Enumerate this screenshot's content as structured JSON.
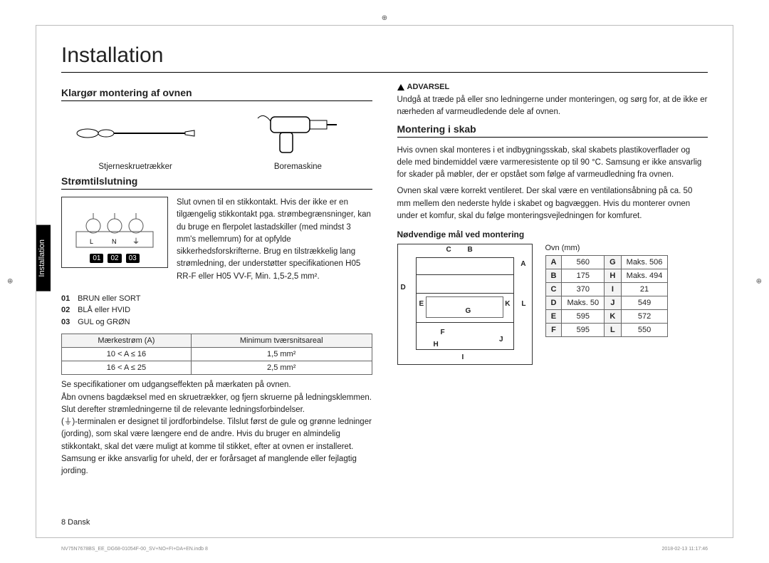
{
  "page_title": "Installation",
  "side_tab": "Installation",
  "section_prepare": {
    "heading": "Klargør montering af ovnen",
    "tool1_label": "Stjerneskruetrækker",
    "tool2_label": "Boremaskine"
  },
  "section_power": {
    "heading": "Strømtilslutning",
    "label_01": "01",
    "label_02": "02",
    "label_03": "03",
    "wire_letters": "L  N",
    "paragraph": "Slut ovnen til en stikkontakt. Hvis der ikke er en tilgængelig stikkontakt pga. strømbegrænsninger, kan du bruge en flerpolet lastadskiller (med mindst 3 mm's mellemrum) for at opfylde sikkerhedsforskrifterne. Brug en tilstrækkelig lang strømledning, der understøtter specifikationen H05 RR-F eller H05 VV-F, Min. 1,5-2,5 mm².",
    "legend": [
      {
        "n": "01",
        "t": "BRUN eller SORT"
      },
      {
        "n": "02",
        "t": "BLÅ eller HVID"
      },
      {
        "n": "03",
        "t": "GUL og GRØN"
      }
    ],
    "table": {
      "h1": "Mærkestrøm (A)",
      "h2": "Minimum tværsnitsareal",
      "rows": [
        [
          "10 < A ≤ 16",
          "1,5 mm²"
        ],
        [
          "16 < A ≤ 25",
          "2,5 mm²"
        ]
      ]
    },
    "footnote": "Se specifikationer om udgangseffekten på mærkaten på ovnen.\nÅbn ovnens bagdæksel med en skruetrækker, og fjern skruerne på ledningsklemmen. Slut derefter strømledningerne til de relevante ledningsforbindelser.\n(⏚)-terminalen er designet til jordforbindelse. Tilslut først de gule og grønne ledninger (jording), som skal være længere end de andre. Hvis du bruger en almindelig stikkontakt, skal det være muligt at komme til stikket, efter at ovnen er installeret. Samsung er ikke ansvarlig for uheld, der er forårsaget af manglende eller fejlagtig jording."
  },
  "warning": {
    "label": "ADVARSEL",
    "text": "Undgå at træde på eller sno ledningerne under monteringen, og sørg for, at de ikke er nærheden af varmeudledende dele af ovnen."
  },
  "section_cabinet": {
    "heading": "Montering i skab",
    "p1": "Hvis ovnen skal monteres i et indbygningsskab, skal skabets plastikoverflader og dele med bindemiddel være varmeresistente op til 90 °C. Samsung er ikke ansvarlig for skader på møbler, der er opstået som følge af varmeudledning fra ovnen.",
    "p2": "Ovnen skal være korrekt ventileret. Der skal være en ventilationsåbning på ca. 50 mm mellem den nederste hylde i skabet og bagvæggen. Hvis du monterer ovnen under et komfur, skal du følge monteringsvejledningen for komfuret.",
    "sub": "Nødvendige mål ved montering",
    "unit_label": "Ovn (mm)",
    "dim_labels": {
      "A": "A",
      "B": "B",
      "C": "C",
      "D": "D",
      "E": "E",
      "F": "F",
      "G": "G",
      "H": "H",
      "I": "I",
      "J": "J",
      "K": "K",
      "L": "L"
    },
    "table": [
      [
        "A",
        "560",
        "G",
        "Maks. 506"
      ],
      [
        "B",
        "175",
        "H",
        "Maks. 494"
      ],
      [
        "C",
        "370",
        "I",
        "21"
      ],
      [
        "D",
        "Maks. 50",
        "J",
        "549"
      ],
      [
        "E",
        "595",
        "K",
        "572"
      ],
      [
        "F",
        "595",
        "L",
        "550"
      ]
    ]
  },
  "footer_page": "8  Dansk",
  "footer_file": "NV75N7678BS_EE_DG68-01054F-00_SV+NO+FI+DA+EN.indb   8",
  "footer_time": "2018-02-13   11:17:46"
}
